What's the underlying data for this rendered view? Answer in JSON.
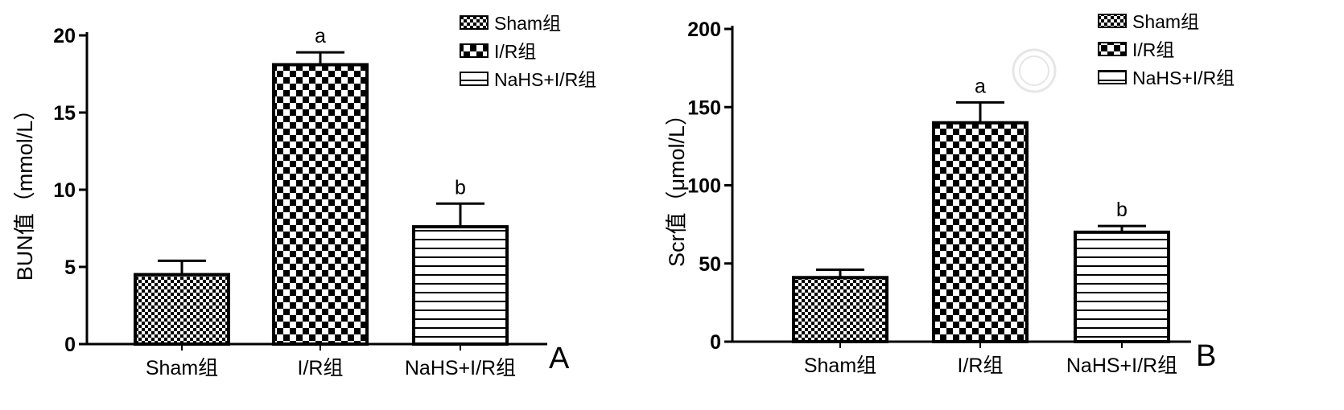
{
  "chart_data": [
    {
      "type": "bar",
      "panel_label": "A",
      "ylabel": "BUN值（mmol/L）",
      "xlabel": "",
      "categories": [
        "Sham组",
        "I/R组",
        "NaHS+I/R组"
      ],
      "values": [
        4.5,
        18.1,
        7.6
      ],
      "errors": [
        0.9,
        0.8,
        1.5
      ],
      "significance": [
        "",
        "a",
        "b"
      ],
      "ylim": [
        0,
        20
      ],
      "yticks": [
        0,
        5,
        10,
        15,
        20
      ],
      "legend": [
        "Sham组",
        "I/R组",
        "NaHS+I/R组"
      ],
      "legend_position": "top-right",
      "grid": false
    },
    {
      "type": "bar",
      "panel_label": "B",
      "ylabel": "Scr值（μmol/L）",
      "xlabel": "",
      "categories": [
        "Sham组",
        "I/R组",
        "NaHS+I/R组"
      ],
      "values": [
        41,
        140,
        70
      ],
      "errors": [
        5,
        13,
        4
      ],
      "significance": [
        "",
        "a",
        "b"
      ],
      "ylim": [
        0,
        200
      ],
      "yticks": [
        0,
        50,
        100,
        150,
        200
      ],
      "legend": [
        "Sham组",
        "I/R组",
        "NaHS+I/R组"
      ],
      "legend_position": "top-right",
      "grid": false
    }
  ],
  "patterns": [
    "small-checker",
    "large-checker",
    "horizontal-lines"
  ],
  "colors": {
    "ink": "#000000",
    "background": "#ffffff"
  }
}
